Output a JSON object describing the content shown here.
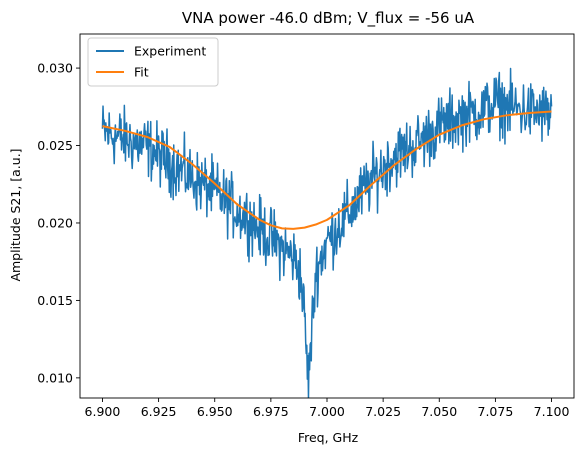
{
  "chart_data": {
    "type": "line",
    "title": "VNA power -46.0 dBm; V_flux = -56 uA",
    "xlabel": "Freq, GHz",
    "ylabel": "Amplitude S21, [a.u.]",
    "xlim": [
      6.89,
      7.11
    ],
    "ylim": [
      0.0087,
      0.0322
    ],
    "x_ticks": [
      6.9,
      6.925,
      6.95,
      6.975,
      7.0,
      7.025,
      7.05,
      7.075,
      7.1
    ],
    "x_tick_labels": [
      "6.900",
      "6.925",
      "6.950",
      "6.975",
      "7.000",
      "7.025",
      "7.050",
      "7.075",
      "7.100"
    ],
    "y_ticks": [
      0.01,
      0.015,
      0.02,
      0.025,
      0.03
    ],
    "y_tick_labels": [
      "0.010",
      "0.015",
      "0.020",
      "0.025",
      "0.030"
    ],
    "grid": false,
    "legend_position": "upper-left",
    "series": [
      {
        "name": "Experiment",
        "color": "#1f77b4",
        "x": [
          6.9,
          6.91,
          6.92,
          6.93,
          6.94,
          6.95,
          6.96,
          6.965,
          6.97,
          6.975,
          6.98,
          6.985,
          6.988,
          6.99,
          6.9915,
          6.992,
          6.993,
          6.995,
          7.0,
          7.01,
          7.02,
          7.03,
          7.04,
          7.05,
          7.06,
          7.07,
          7.075,
          7.08,
          7.09,
          7.1
        ],
        "y": [
          0.0259,
          0.0254,
          0.0249,
          0.0239,
          0.0229,
          0.022,
          0.0208,
          0.0203,
          0.0196,
          0.019,
          0.0184,
          0.0178,
          0.0168,
          0.014,
          0.01,
          0.0105,
          0.0125,
          0.0168,
          0.0188,
          0.0207,
          0.0228,
          0.0243,
          0.0251,
          0.0262,
          0.0269,
          0.0273,
          0.0278,
          0.0275,
          0.0272,
          0.027
        ],
        "noise_amplitude": 0.0013
      },
      {
        "name": "Fit",
        "color": "#ff7f0e",
        "x": [
          6.9,
          6.91,
          6.92,
          6.93,
          6.94,
          6.95,
          6.96,
          6.97,
          6.975,
          6.98,
          6.985,
          6.99,
          6.995,
          7.0,
          7.01,
          7.02,
          7.03,
          7.04,
          7.05,
          7.06,
          7.07,
          7.08,
          7.09,
          7.1
        ],
        "y": [
          0.02625,
          0.02595,
          0.02555,
          0.0249,
          0.0238,
          0.02255,
          0.0212,
          0.0202,
          0.01985,
          0.01965,
          0.01962,
          0.0197,
          0.0199,
          0.0202,
          0.02115,
          0.0225,
          0.02375,
          0.0248,
          0.0257,
          0.0263,
          0.0267,
          0.02695,
          0.0271,
          0.0272
        ]
      }
    ]
  }
}
